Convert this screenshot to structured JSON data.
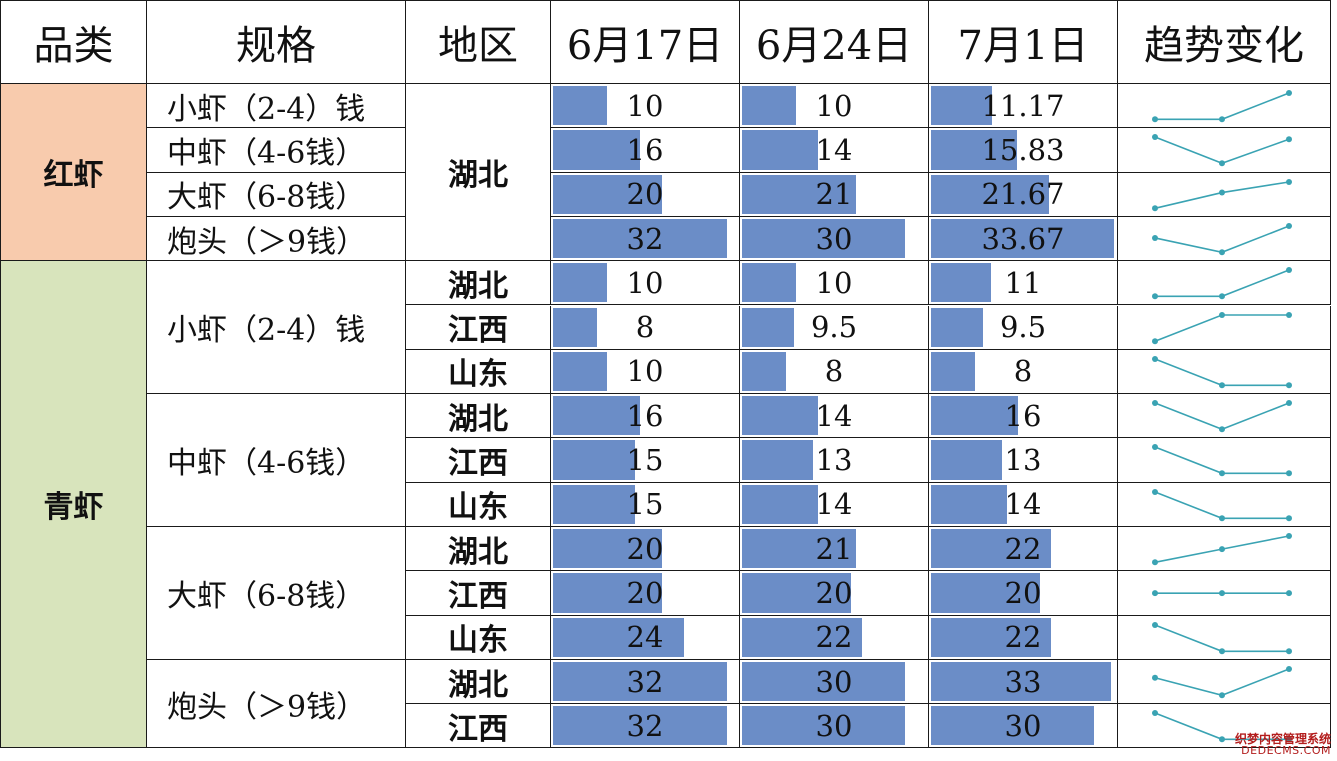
{
  "headers": [
    "品类",
    "规格",
    "地区",
    "6月17日",
    "6月24日",
    "7月1日",
    "趋势变化"
  ],
  "categories": [
    {
      "label": "红虾",
      "bg": "#f8cbad",
      "groups": [
        {
          "spec": "小虾（2-4）钱",
          "regions": [
            {
              "region": "湖北",
              "values": [
                "10",
                "10",
                "11.17"
              ]
            }
          ]
        },
        {
          "spec": "中虾（4-6钱）",
          "regions": [
            {
              "region": "湖北",
              "values": [
                "16",
                "14",
                "15.83"
              ]
            }
          ]
        },
        {
          "spec": "大虾（6-8钱）",
          "regions": [
            {
              "region": "湖北",
              "values": [
                "20",
                "21",
                "21.67"
              ]
            }
          ]
        },
        {
          "spec": "炮头（＞9钱）",
          "regions": [
            {
              "region": "湖北",
              "values": [
                "32",
                "30",
                "33.67"
              ]
            }
          ]
        }
      ]
    },
    {
      "label": "青虾",
      "bg": "#d8e4bc",
      "groups": [
        {
          "spec": "小虾（2-4）钱",
          "regions": [
            {
              "region": "湖北",
              "values": [
                "10",
                "10",
                "11"
              ]
            },
            {
              "region": "江西",
              "values": [
                "8",
                "9.5",
                "9.5"
              ]
            },
            {
              "region": "山东",
              "values": [
                "10",
                "8",
                "8"
              ]
            }
          ]
        },
        {
          "spec": "中虾（4-6钱）",
          "regions": [
            {
              "region": "湖北",
              "values": [
                "16",
                "14",
                "16"
              ]
            },
            {
              "region": "江西",
              "values": [
                "15",
                "13",
                "13"
              ]
            },
            {
              "region": "山东",
              "values": [
                "15",
                "14",
                "14"
              ]
            }
          ]
        },
        {
          "spec": "大虾（6-8钱）",
          "regions": [
            {
              "region": "湖北",
              "values": [
                "20",
                "21",
                "22"
              ]
            },
            {
              "region": "江西",
              "values": [
                "20",
                "20",
                "20"
              ]
            },
            {
              "region": "山东",
              "values": [
                "24",
                "22",
                "22"
              ]
            }
          ]
        },
        {
          "spec": "炮头（＞9钱）",
          "regions": [
            {
              "region": "湖北",
              "values": [
                "32",
                "30",
                "33"
              ]
            },
            {
              "region": "江西",
              "values": [
                "32",
                "30",
                "30"
              ]
            }
          ]
        }
      ]
    }
  ],
  "colors": {
    "data_bar": "#6b8dc7",
    "sparkline": "#3aa3b3"
  },
  "watermark": {
    "line1": "织梦内容管理系统",
    "line2": "DEDECMS.COM"
  }
}
